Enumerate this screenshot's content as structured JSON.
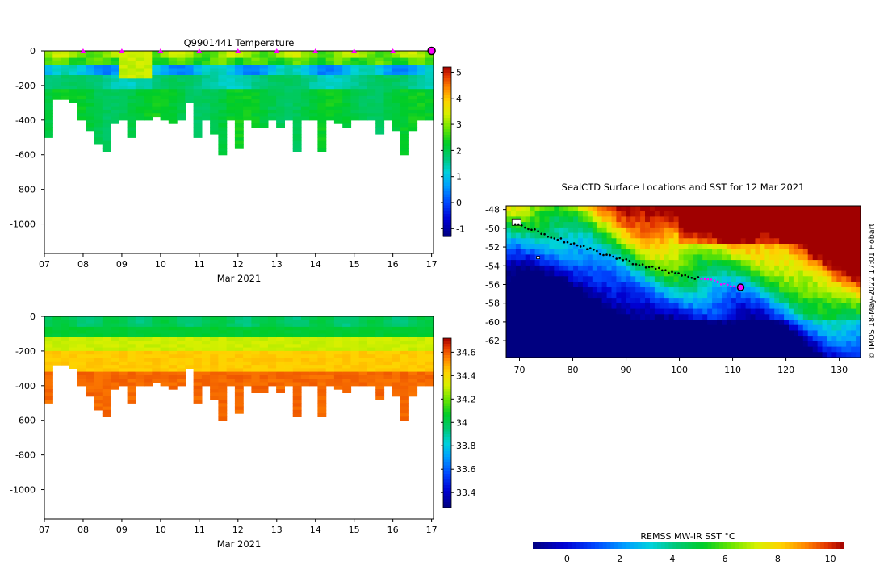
{
  "chart_data": [
    {
      "id": "temp",
      "type": "heatmap",
      "title": "Q9901441  Temperature",
      "xlabel": "Mar 2021",
      "ylabel": "",
      "x_ticks": [
        "07",
        "08",
        "09",
        "10",
        "11",
        "12",
        "13",
        "14",
        "15",
        "16",
        "17"
      ],
      "y_ticks": [
        "0",
        "-200",
        "-400",
        "-600",
        "-800",
        "-1000"
      ],
      "x_range": [
        7,
        17.05
      ],
      "y_range": [
        -1170,
        0
      ],
      "colorbar": {
        "min": -1.3,
        "max": 5.2,
        "ticks": [
          "-1",
          "0",
          "1",
          "2",
          "3",
          "4",
          "5"
        ]
      },
      "surface_markers_days": [
        8,
        9,
        10,
        11,
        12,
        13,
        14,
        15,
        16
      ],
      "last_position_day": 17,
      "profile_bottom_depths": [
        500,
        270,
        280,
        300,
        400,
        460,
        540,
        580,
        420,
        400,
        500,
        400,
        400,
        380,
        400,
        420,
        400,
        300,
        500,
        400,
        480,
        590,
        400,
        560,
        400,
        440,
        440,
        400,
        440,
        400,
        580,
        400,
        400,
        580,
        400,
        420,
        430,
        400,
        400,
        400,
        480,
        400,
        460,
        590,
        460,
        400,
        400
      ]
    },
    {
      "id": "salt",
      "type": "heatmap",
      "title": "",
      "xlabel": "Mar 2021",
      "ylabel": "",
      "x_ticks": [
        "07",
        "08",
        "09",
        "10",
        "11",
        "12",
        "13",
        "14",
        "15",
        "16",
        "17"
      ],
      "y_ticks": [
        "0",
        "-200",
        "-400",
        "-600",
        "-800",
        "-1000"
      ],
      "x_range": [
        7,
        17.05
      ],
      "y_range": [
        -1170,
        0
      ],
      "colorbar": {
        "min": 33.27,
        "max": 34.72,
        "ticks": [
          "33.4",
          "33.6",
          "33.8",
          "34",
          "34.2",
          "34.4",
          "34.6"
        ]
      }
    },
    {
      "id": "map",
      "type": "heatmap",
      "title": "SealCTD Surface Locations and SST for 12 Mar 2021",
      "xlabel": "",
      "ylabel": "",
      "x_ticks": [
        "70",
        "80",
        "90",
        "100",
        "110",
        "120",
        "130"
      ],
      "y_ticks": [
        "-48",
        "-50",
        "-52",
        "-54",
        "-56",
        "-58",
        "-60",
        "-62"
      ],
      "lon_range": [
        67.5,
        134
      ],
      "lat_range": [
        -63.8,
        -47.6
      ],
      "colorbar": {
        "label": "REMSS MW-IR SST °C",
        "min": -1.3,
        "max": 10.5,
        "ticks": [
          "0",
          "2",
          "4",
          "6",
          "8",
          "10"
        ]
      },
      "credit": "© IMOS 18-May-2022 17:01 Hobart",
      "track_start": [
        69.2,
        -49.5
      ],
      "track_end": [
        111.5,
        -56.3
      ]
    }
  ]
}
